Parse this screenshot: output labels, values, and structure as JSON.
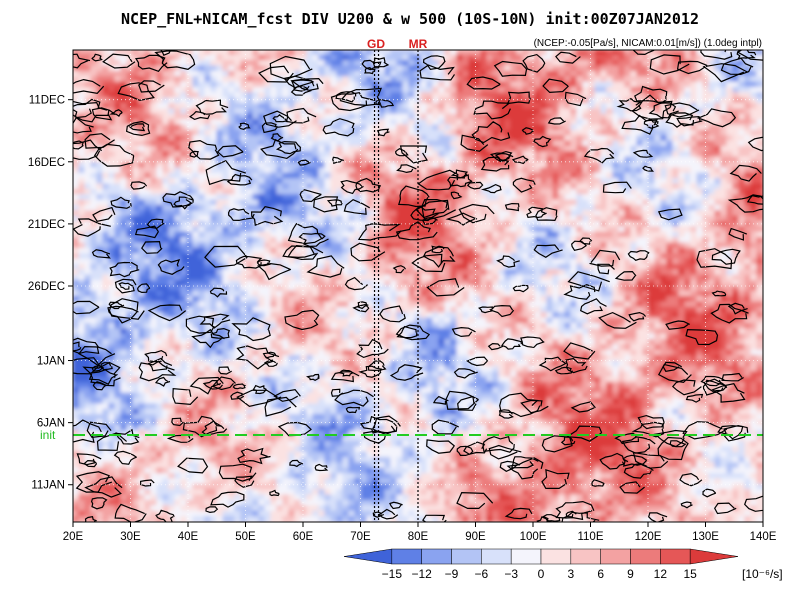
{
  "chart_data": {
    "type": "heatmap",
    "title": "NCEP_FNL+NICAM_fcst DIV U200 & w 500 (10S-10N) init:00Z07JAN2012",
    "subtitle": "(NCEP:-0.05[Pa/s], NICAM:0.01[m/s]) (1.0deg intpl)",
    "xlabel": "",
    "ylabel": "",
    "x_ticks": [
      "20E",
      "30E",
      "40E",
      "50E",
      "60E",
      "70E",
      "80E",
      "90E",
      "100E",
      "110E",
      "120E",
      "130E",
      "140E"
    ],
    "x_tick_values": [
      20,
      30,
      40,
      50,
      60,
      70,
      80,
      90,
      100,
      110,
      120,
      130,
      140
    ],
    "xlim": [
      20,
      140
    ],
    "y_ticks": [
      "11DEC",
      "16DEC",
      "21DEC",
      "26DEC",
      "1JAN",
      "6JAN",
      "11JAN"
    ],
    "y_tick_values": [
      "2011-12-11",
      "2011-12-16",
      "2011-12-21",
      "2011-12-26",
      "2012-01-01",
      "2012-01-06",
      "2012-01-11"
    ],
    "ylim": [
      "2011-12-07",
      "2012-01-14"
    ],
    "y_direction": "time increases downward",
    "markers": [
      {
        "label": "GD",
        "lon": 72.7
      },
      {
        "label": "MR",
        "lon": 80.0
      }
    ],
    "init_line": {
      "label": "init",
      "date": "2012-01-07",
      "color": "#22cc22",
      "style": "dashed"
    },
    "colorbar": {
      "ticks": [
        "−15",
        "−12",
        "−9",
        "−6",
        "−3",
        "0",
        "3",
        "6",
        "9",
        "12",
        "15"
      ],
      "tick_values": [
        -15,
        -12,
        -9,
        -6,
        -3,
        0,
        3,
        6,
        9,
        12,
        15
      ],
      "units": "[10⁻⁶/s]",
      "colors": [
        "#3f63d9",
        "#5f80e6",
        "#8aa3f0",
        "#b3c4f5",
        "#d8e1fa",
        "#f4f4fc",
        "#fbe2e2",
        "#f8c4c4",
        "#f3a2a2",
        "#ec7b7b",
        "#e55757",
        "#dc3b3b"
      ]
    },
    "contours": "vertical velocity w 500 (black lines)"
  }
}
